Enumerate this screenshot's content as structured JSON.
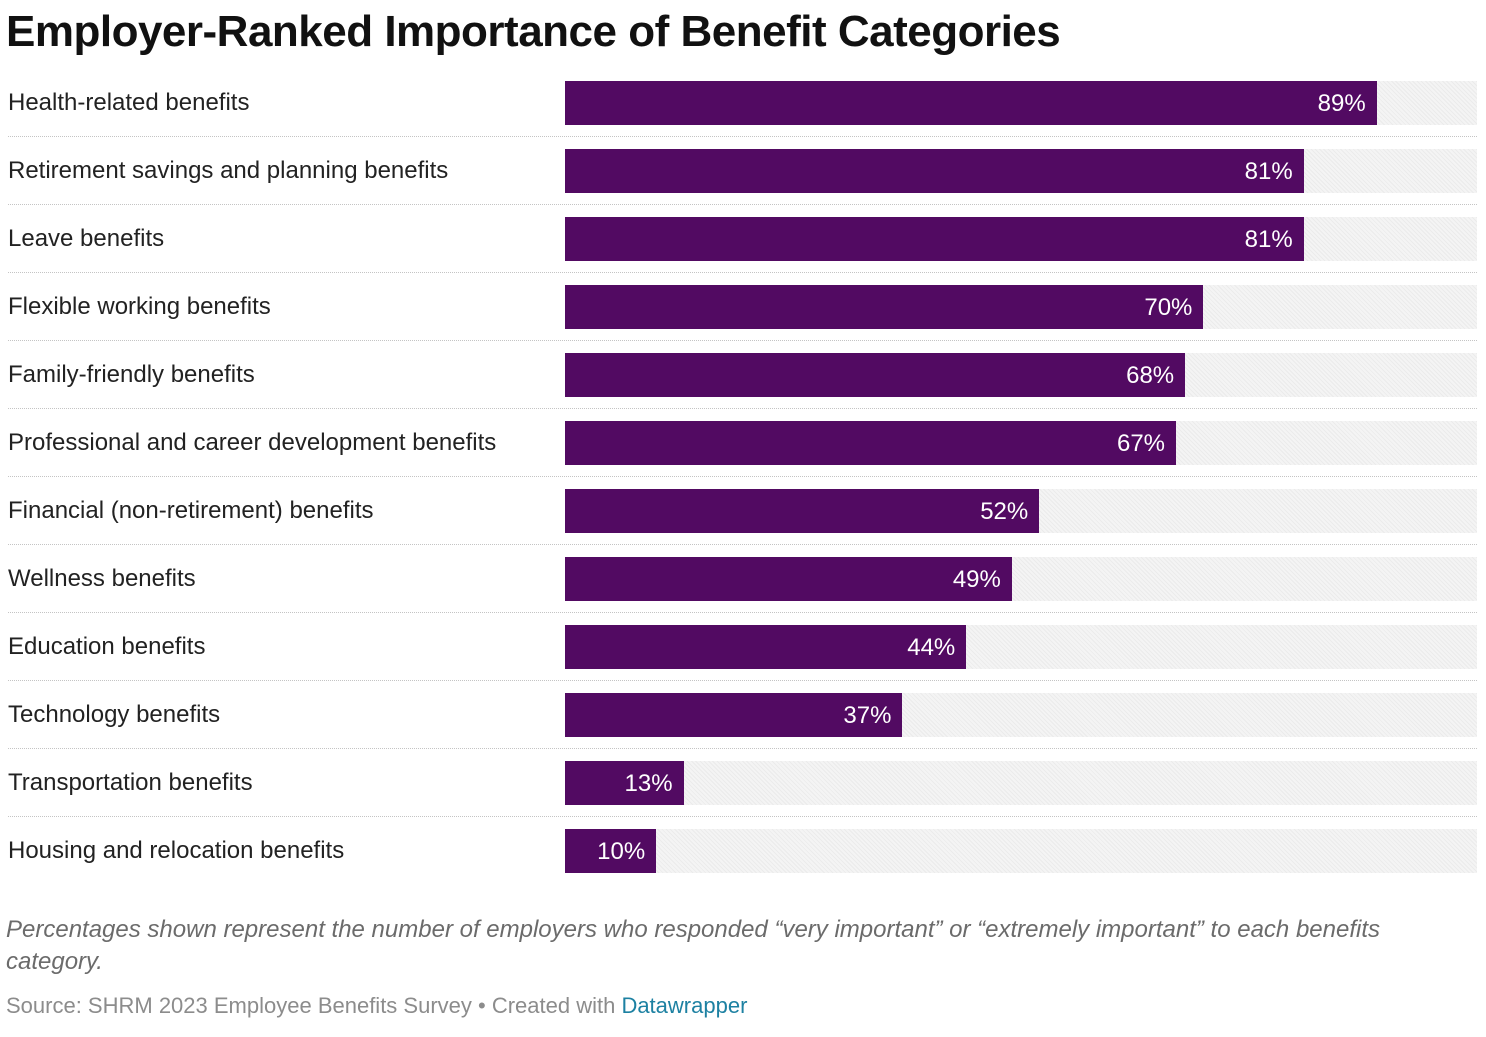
{
  "chart_data": {
    "type": "bar",
    "orientation": "horizontal",
    "title": "Employer-Ranked Importance of Benefit Categories",
    "categories": [
      "Health-related benefits",
      "Retirement savings and planning benefits",
      "Leave benefits",
      "Flexible working benefits",
      "Family-friendly benefits",
      "Professional and career development benefits",
      "Financial (non-retirement) benefits",
      "Wellness benefits",
      "Education benefits",
      "Technology benefits",
      "Transportation benefits",
      "Housing and relocation benefits"
    ],
    "values": [
      89,
      81,
      81,
      70,
      68,
      67,
      52,
      49,
      44,
      37,
      13,
      10
    ],
    "value_labels": [
      "89%",
      "81%",
      "81%",
      "70%",
      "68%",
      "67%",
      "52%",
      "49%",
      "44%",
      "37%",
      "13%",
      "10%"
    ],
    "xlim": [
      0,
      100
    ],
    "grid": false,
    "legend": "none",
    "colors": {
      "bar": "#520a62",
      "track": "#f1f1f1",
      "value_label": "#ffffff"
    }
  },
  "notes": "Percentages shown represent the number of employers who responded “very important” or “extremely important” to each benefits category.",
  "source": {
    "text": "Source: SHRM 2023 Employee Benefits Survey • Created with ",
    "link_label": "Datawrapper"
  }
}
